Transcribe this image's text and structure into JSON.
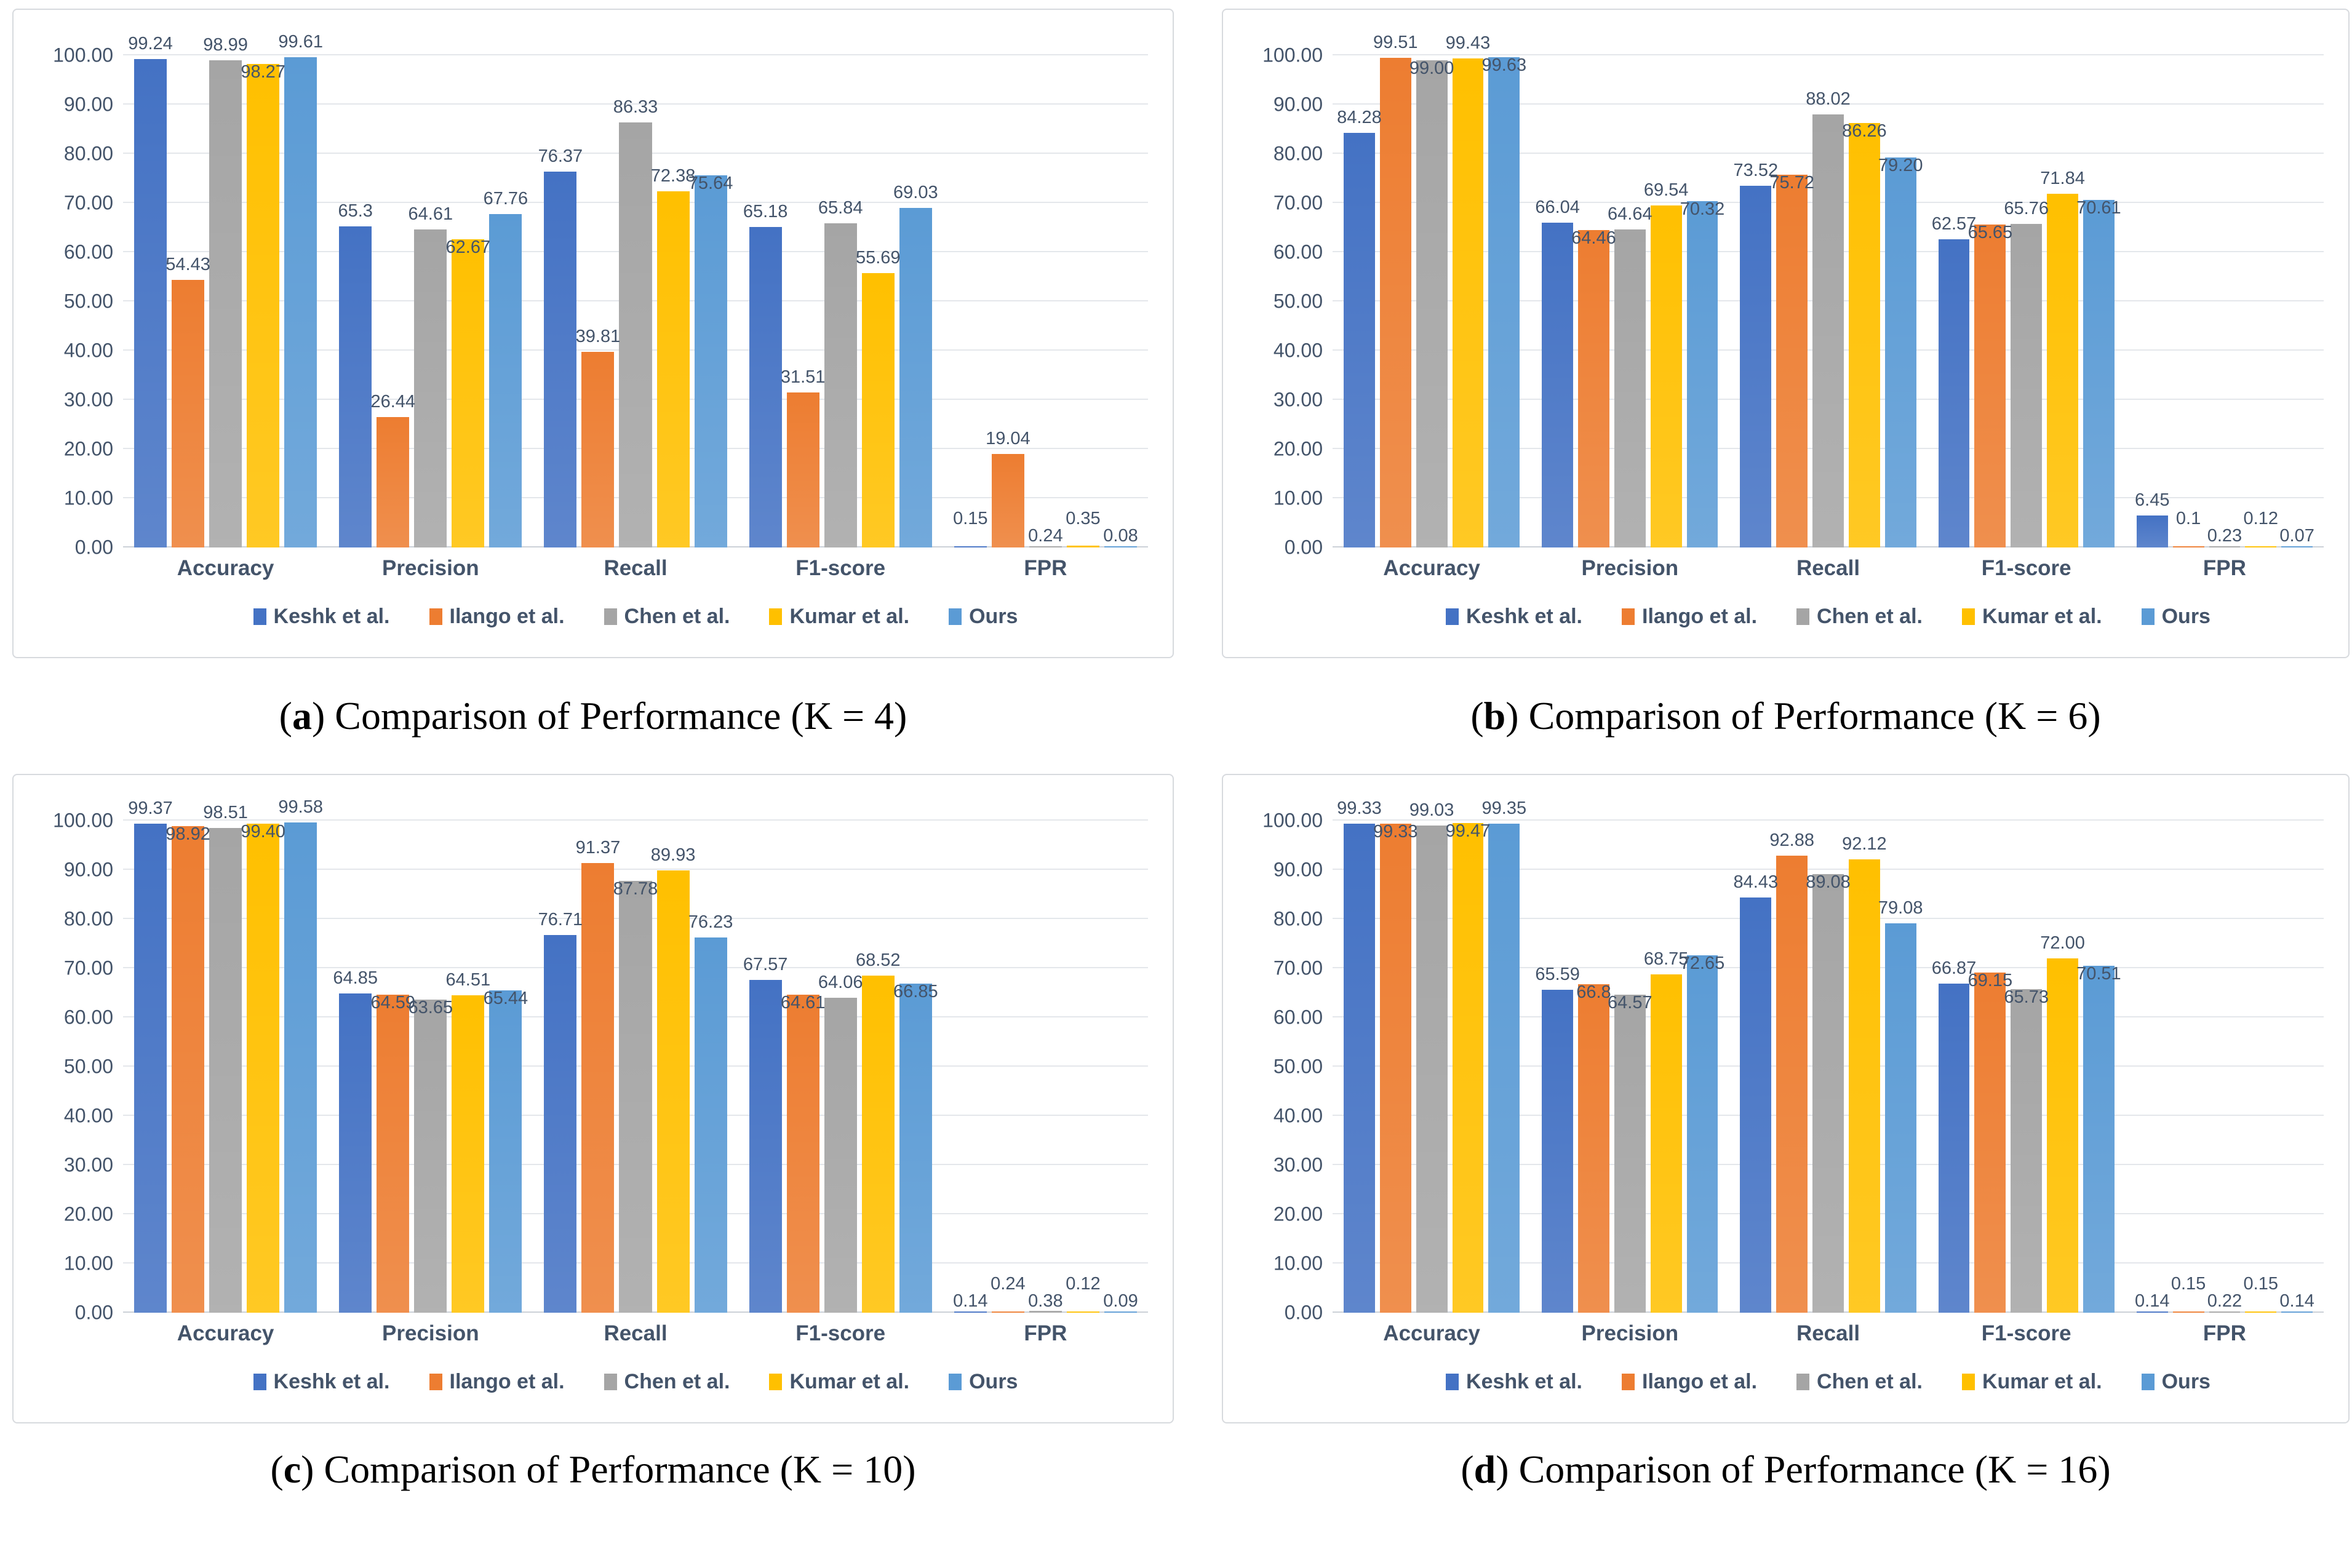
{
  "figure": {
    "description": "Four grouped bar charts comparing five methods on five metrics for different K values",
    "text_color": "#44546A"
  },
  "chart_data": [
    {
      "panel": "a",
      "type": "bar",
      "caption_label": "a",
      "caption_title": "Comparison of Performance (K = 4)",
      "categories": [
        "Accuracy",
        "Precision",
        "Recall",
        "F1-score",
        "FPR"
      ],
      "y_axis": {
        "min": 0,
        "max": 100,
        "step": 10,
        "tick_labels": [
          "0.00",
          "10.00",
          "20.00",
          "30.00",
          "40.00",
          "50.00",
          "60.00",
          "70.00",
          "80.00",
          "90.00",
          "100.00"
        ]
      },
      "grid": "horizontal",
      "legend_position": "bottom",
      "series": [
        {
          "name": "Keshk et al.",
          "color": "#4472C4",
          "values": [
            99.24,
            65.3,
            76.37,
            65.18,
            0.15
          ],
          "labels": [
            "99.24",
            "65.3",
            "76.37",
            "65.18",
            "0.15"
          ]
        },
        {
          "name": "Ilango et al.",
          "color": "#ED7D31",
          "values": [
            54.43,
            26.44,
            39.81,
            31.51,
            19.04
          ],
          "labels": [
            "54.43",
            "26.44",
            "39.81",
            "31.51",
            "19.04"
          ]
        },
        {
          "name": "Chen et al.",
          "color": "#A5A5A5",
          "values": [
            98.99,
            64.61,
            86.33,
            65.84,
            0.24
          ],
          "labels": [
            "98.99",
            "64.61",
            "86.33",
            "65.84",
            "0.24"
          ]
        },
        {
          "name": "Kumar et al.",
          "color": "#FFC000",
          "values": [
            98.27,
            62.67,
            72.38,
            55.69,
            0.35
          ],
          "labels": [
            "98.27",
            "62.67",
            "72.38",
            "55.69",
            "0.35"
          ]
        },
        {
          "name": "Ours",
          "color": "#5B9BD5",
          "values": [
            99.61,
            67.76,
            75.64,
            69.03,
            0.08
          ],
          "labels": [
            "99.61",
            "67.76",
            "75.64",
            "69.03",
            "0.08"
          ]
        }
      ]
    },
    {
      "panel": "b",
      "type": "bar",
      "caption_label": "b",
      "caption_title": "Comparison of Performance (K = 6)",
      "categories": [
        "Accuracy",
        "Precision",
        "Recall",
        "F1-score",
        "FPR"
      ],
      "y_axis": {
        "min": 0,
        "max": 100,
        "step": 10,
        "tick_labels": [
          "0.00",
          "10.00",
          "20.00",
          "30.00",
          "40.00",
          "50.00",
          "60.00",
          "70.00",
          "80.00",
          "90.00",
          "100.00"
        ]
      },
      "grid": "horizontal",
      "legend_position": "bottom",
      "series": [
        {
          "name": "Keshk et al.",
          "color": "#4472C4",
          "values": [
            84.28,
            66.04,
            73.52,
            62.57,
            6.45
          ],
          "labels": [
            "84.28",
            "66.04",
            "73.52",
            "62.57",
            "6.45"
          ]
        },
        {
          "name": "Ilango et al.",
          "color": "#ED7D31",
          "values": [
            99.51,
            64.46,
            75.72,
            65.65,
            0.1
          ],
          "labels": [
            "99.51",
            "64.46",
            "75.72",
            "65.65",
            "0.1"
          ]
        },
        {
          "name": "Chen et al.",
          "color": "#A5A5A5",
          "values": [
            99.0,
            64.64,
            88.02,
            65.76,
            0.23
          ],
          "labels": [
            "99.00",
            "64.64",
            "88.02",
            "65.76",
            "0.23"
          ]
        },
        {
          "name": "Kumar et al.",
          "color": "#FFC000",
          "values": [
            99.43,
            69.54,
            86.26,
            71.84,
            0.12
          ],
          "labels": [
            "99.43",
            "69.54",
            "86.26",
            "71.84",
            "0.12"
          ]
        },
        {
          "name": "Ours",
          "color": "#5B9BD5",
          "values": [
            99.63,
            70.32,
            79.2,
            70.61,
            0.07
          ],
          "labels": [
            "99.63",
            "70.32",
            "79.20",
            "70.61",
            "0.07"
          ]
        }
      ]
    },
    {
      "panel": "c",
      "type": "bar",
      "caption_label": "c",
      "caption_title": "Comparison of Performance (K = 10)",
      "categories": [
        "Accuracy",
        "Precision",
        "Recall",
        "F1-score",
        "FPR"
      ],
      "y_axis": {
        "min": 0,
        "max": 100,
        "step": 10,
        "tick_labels": [
          "0.00",
          "10.00",
          "20.00",
          "30.00",
          "40.00",
          "50.00",
          "60.00",
          "70.00",
          "80.00",
          "90.00",
          "100.00"
        ]
      },
      "grid": "horizontal",
      "legend_position": "bottom",
      "series": [
        {
          "name": "Keshk et al.",
          "color": "#4472C4",
          "values": [
            99.37,
            64.85,
            76.71,
            67.57,
            0.14
          ],
          "labels": [
            "99.37",
            "64.85",
            "76.71",
            "67.57",
            "0.14"
          ]
        },
        {
          "name": "Ilango et al.",
          "color": "#ED7D31",
          "values": [
            98.92,
            64.59,
            91.37,
            64.61,
            0.24
          ],
          "labels": [
            "98.92",
            "64.59",
            "91.37",
            "64.61",
            "0.24"
          ]
        },
        {
          "name": "Chen et al.",
          "color": "#A5A5A5",
          "values": [
            98.51,
            63.65,
            87.78,
            64.06,
            0.38
          ],
          "labels": [
            "98.51",
            "63.65",
            "87.78",
            "64.06",
            "0.38"
          ]
        },
        {
          "name": "Kumar et al.",
          "color": "#FFC000",
          "values": [
            99.4,
            64.51,
            89.93,
            68.52,
            0.12
          ],
          "labels": [
            "99.40",
            "64.51",
            "89.93",
            "68.52",
            "0.12"
          ]
        },
        {
          "name": "Ours",
          "color": "#5B9BD5",
          "values": [
            99.58,
            65.44,
            76.23,
            66.85,
            0.09
          ],
          "labels": [
            "99.58",
            "65.44",
            "76.23",
            "66.85",
            "0.09"
          ]
        }
      ]
    },
    {
      "panel": "d",
      "type": "bar",
      "caption_label": "d",
      "caption_title": "Comparison of Performance (K = 16)",
      "categories": [
        "Accuracy",
        "Precision",
        "Recall",
        "F1-score",
        "FPR"
      ],
      "y_axis": {
        "min": 0,
        "max": 100,
        "step": 10,
        "tick_labels": [
          "0.00",
          "10.00",
          "20.00",
          "30.00",
          "40.00",
          "50.00",
          "60.00",
          "70.00",
          "80.00",
          "90.00",
          "100.00"
        ]
      },
      "grid": "horizontal",
      "legend_position": "bottom",
      "series": [
        {
          "name": "Keshk et al.",
          "color": "#4472C4",
          "values": [
            99.33,
            65.59,
            84.43,
            66.87,
            0.14
          ],
          "labels": [
            "99.33",
            "65.59",
            "84.43",
            "66.87",
            "0.14"
          ]
        },
        {
          "name": "Ilango et al.",
          "color": "#ED7D31",
          "values": [
            99.33,
            66.8,
            92.88,
            69.15,
            0.15
          ],
          "labels": [
            "99.33",
            "66.8",
            "92.88",
            "69.15",
            "0.15"
          ]
        },
        {
          "name": "Chen et al.",
          "color": "#A5A5A5",
          "values": [
            99.03,
            64.57,
            89.08,
            65.73,
            0.22
          ],
          "labels": [
            "99.03",
            "64.57",
            "89.08",
            "65.73",
            "0.22"
          ]
        },
        {
          "name": "Kumar et al.",
          "color": "#FFC000",
          "values": [
            99.47,
            68.75,
            92.12,
            72.0,
            0.15
          ],
          "labels": [
            "99.47",
            "68.75",
            "92.12",
            "72.00",
            "0.15"
          ]
        },
        {
          "name": "Ours",
          "color": "#5B9BD5",
          "values": [
            99.35,
            72.65,
            79.08,
            70.51,
            0.14
          ],
          "labels": [
            "99.35",
            "72.65",
            "79.08",
            "70.51",
            "0.14"
          ]
        }
      ]
    }
  ]
}
